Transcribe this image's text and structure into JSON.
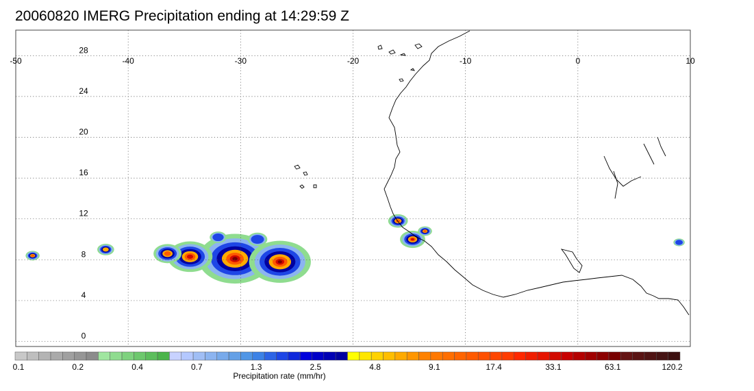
{
  "title": "20060820 IMERG Precipitation ending at 14:29:59 Z",
  "map": {
    "lon_range": [
      -50,
      10
    ],
    "lat_range": [
      -0.5,
      30.5
    ],
    "lon_ticks": [
      -50,
      -40,
      -30,
      -20,
      -10,
      0,
      10
    ],
    "lon_tick_labels": [
      "-50",
      "-40",
      "-30",
      "-20",
      "-10",
      "0",
      "10"
    ],
    "lat_ticks": [
      0,
      4,
      8,
      12,
      16,
      20,
      24,
      28
    ],
    "lat_tick_labels": [
      "0",
      "4",
      "8",
      "12",
      "16",
      "20",
      "24",
      "28"
    ],
    "grid": true,
    "grid_style": "dotted",
    "coastline_color": "#000000"
  },
  "colorbar": {
    "title": "Precipitation rate (mm/hr)",
    "labels": [
      "0.1",
      "0.2",
      "0.4",
      "0.7",
      "1.3",
      "2.5",
      "4.8",
      "9.1",
      "17.4",
      "33.1",
      "63.1",
      "120.2"
    ],
    "colors": [
      "#c8c8c8",
      "#bebebe",
      "#b4b4b4",
      "#aaaaaa",
      "#a0a0a0",
      "#969696",
      "#8c8c8c",
      "#a0e6a0",
      "#8fdc8f",
      "#7ed27e",
      "#6dc86d",
      "#5cbe5c",
      "#4bb44b",
      "#c8d2ff",
      "#b4c8ff",
      "#a0bef5",
      "#8cb4f0",
      "#78aaeb",
      "#64a0e6",
      "#5096e6",
      "#3c82e6",
      "#2d64e6",
      "#1e46e6",
      "#0f28dc",
      "#0000dc",
      "#0000c8",
      "#0000b4",
      "#0000a0",
      "#ffff00",
      "#ffe600",
      "#ffd200",
      "#ffbe00",
      "#ffaa00",
      "#ff9600",
      "#ff8200",
      "#ff7800",
      "#ff6e00",
      "#ff6400",
      "#ff5a00",
      "#ff5000",
      "#ff4600",
      "#ff3c00",
      "#ff2800",
      "#f01e00",
      "#e61400",
      "#d20a00",
      "#c80000",
      "#b40000",
      "#a00000",
      "#8c0000",
      "#780000",
      "#641414",
      "#5a1414",
      "#501414",
      "#461414",
      "#3c1010"
    ]
  },
  "precipitation": [
    {
      "lon": -30.5,
      "lat": 8.1,
      "size": 2.6,
      "level": 48
    },
    {
      "lon": -26.5,
      "lat": 7.8,
      "size": 2.2,
      "level": 50
    },
    {
      "lon": -34.5,
      "lat": 8.3,
      "size": 1.6,
      "level": 44
    },
    {
      "lon": -36.5,
      "lat": 8.6,
      "size": 1.0,
      "level": 36
    },
    {
      "lon": -42.0,
      "lat": 9.0,
      "size": 0.6,
      "level": 34
    },
    {
      "lon": -48.5,
      "lat": 8.4,
      "size": 0.5,
      "level": 40
    },
    {
      "lon": -28.5,
      "lat": 10.0,
      "size": 0.7,
      "level": 24
    },
    {
      "lon": -32.0,
      "lat": 10.2,
      "size": 0.6,
      "level": 22
    },
    {
      "lon": -16.0,
      "lat": 11.8,
      "size": 0.7,
      "level": 40
    },
    {
      "lon": -14.7,
      "lat": 10.0,
      "size": 0.9,
      "level": 45
    },
    {
      "lon": -13.6,
      "lat": 10.8,
      "size": 0.5,
      "level": 38
    },
    {
      "lon": 9.0,
      "lat": 9.7,
      "size": 0.4,
      "level": 22
    }
  ]
}
